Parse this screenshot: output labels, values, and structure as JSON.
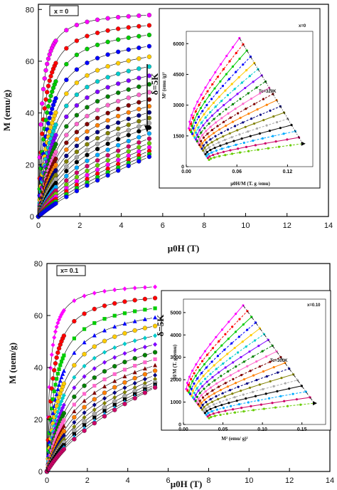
{
  "figure": {
    "colors": [
      "#ff00ff",
      "#ff0000",
      "#00cc00",
      "#0000ff",
      "#ffcc00",
      "#00cccc",
      "#8000ff",
      "#008000",
      "#ff66cc",
      "#800000",
      "#ff8000",
      "#000080",
      "#808000",
      "#aaaaaa",
      "#000000",
      "#00aaff",
      "#cc0066",
      "#66cc00"
    ]
  },
  "chart_data": [
    {
      "id": "top_main",
      "type": "line",
      "legend_box": "x = 0",
      "xlabel": "μ0H (T)",
      "ylabel": "M (emu/g)",
      "xlim": [
        0,
        14
      ],
      "ylim": [
        0,
        82
      ],
      "xticks": [
        "0",
        "2",
        "4",
        "6",
        "8",
        "10",
        "12",
        "14"
      ],
      "yticks": [
        "0",
        "20",
        "40",
        "60",
        "80"
      ],
      "arrow_label": "δ=5K",
      "series_note": "isotherms, top curve M_sat≈80 decreasing in steps with temperature",
      "series_msat": [
        80,
        78,
        76,
        73,
        70,
        67,
        64,
        61,
        58,
        55,
        52,
        49,
        46,
        43,
        40,
        36,
        32,
        28,
        24,
        20,
        16,
        12
      ]
    },
    {
      "id": "top_inset",
      "type": "line",
      "legend_box": "x=0",
      "xlabel": "μ0H/M (T. g /emu)",
      "ylabel": "M² (emu /g)²",
      "xlim": [
        0,
        0.15
      ],
      "ylim": [
        0,
        6600
      ],
      "xticks": [
        "0.00",
        "0.06",
        "0.12"
      ],
      "yticks": [
        "0",
        "1500",
        "3000",
        "4500",
        "6000"
      ],
      "annotation": "Tc=320K",
      "side_label": "δ=5K"
    },
    {
      "id": "bottom_main",
      "type": "line",
      "legend_box": "x= 0.1",
      "xlabel": "μ0H (T)",
      "ylabel": "M (uem/g)",
      "xlim": [
        0,
        14
      ],
      "ylim": [
        0,
        80
      ],
      "xticks": [
        "0",
        "2",
        "4",
        "6",
        "8",
        "10",
        "12",
        "14"
      ],
      "yticks": [
        "0",
        "20",
        "40",
        "60",
        "80"
      ],
      "series_msat": [
        73,
        71,
        69,
        67,
        65,
        62,
        59,
        56,
        53,
        50,
        47,
        44,
        41,
        38,
        35,
        32,
        29
      ]
    },
    {
      "id": "bottom_inset",
      "type": "line",
      "legend_box": "x=0.10",
      "xlabel": "M² (emu/ g)²",
      "ylabel": "H/M (T. g /emu)",
      "xlim": [
        0,
        0.18
      ],
      "ylim": [
        0,
        5600
      ],
      "xticks": [
        "0.00",
        "0.05",
        "0.10",
        "0.15"
      ],
      "yticks": [
        "0",
        "1000",
        "2000",
        "3000",
        "4000",
        "5000"
      ],
      "annotation": "Tc=300K",
      "side_label": "δ=5K"
    }
  ]
}
